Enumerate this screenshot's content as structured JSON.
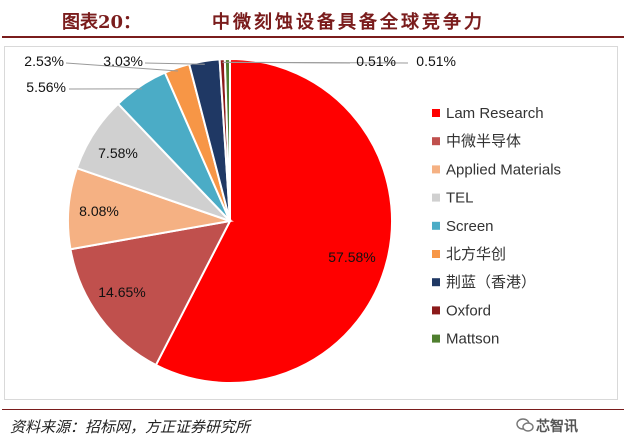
{
  "figure": {
    "label": "图表20：",
    "title": "中微刻蚀设备具备全球竞争力",
    "source": "资料来源：招标网，方正证券研究所",
    "watermark": "芯智讯",
    "watermark_icon": "wechat-icon"
  },
  "chart_data": {
    "type": "pie",
    "title": "",
    "categories": [
      "Lam Research",
      "中微半导体",
      "Applied Materials",
      "TEL",
      "Screen",
      "北方华创",
      "荆蓝（香港）",
      "Oxford",
      "Mattson"
    ],
    "values": [
      57.58,
      14.65,
      8.08,
      7.58,
      5.56,
      2.53,
      3.03,
      0.51,
      0.51
    ],
    "labels": [
      "57.58%",
      "14.65%",
      "8.08%",
      "7.58%",
      "5.56%",
      "2.53%",
      "3.03%",
      "0.51%",
      "0.51%"
    ],
    "colors": [
      "#ff0000",
      "#c0504d",
      "#f5b183",
      "#d0d0d0",
      "#4bacc6",
      "#f79646",
      "#1f3864",
      "#8b1a1a",
      "#4f7f2f"
    ],
    "legend_position": "right",
    "start_angle_deg": 0,
    "direction": "clockwise"
  }
}
